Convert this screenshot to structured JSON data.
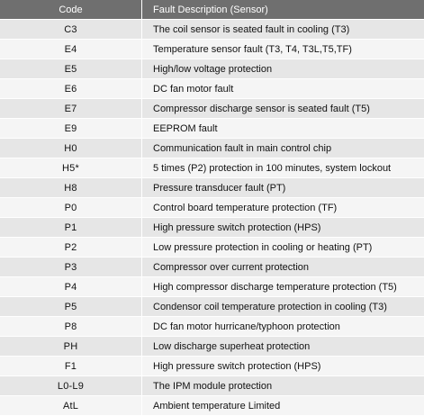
{
  "table": {
    "headers": {
      "code": "Code",
      "description": "Fault Description (Sensor)"
    },
    "rows": [
      {
        "code": "C3",
        "description": "The coil sensor is seated fault in cooling (T3)"
      },
      {
        "code": "E4",
        "description": "Temperature sensor fault (T3, T4, T3L,T5,TF)"
      },
      {
        "code": "E5",
        "description": "High/low voltage protection"
      },
      {
        "code": "E6",
        "description": "DC fan motor fault"
      },
      {
        "code": "E7",
        "description": "Compressor discharge sensor is seated fault (T5)"
      },
      {
        "code": "E9",
        "description": "EEPROM fault"
      },
      {
        "code": "H0",
        "description": "Communication fault in main control chip"
      },
      {
        "code": "H5*",
        "description": "5 times (P2) protection in 100 minutes, system lockout"
      },
      {
        "code": "H8",
        "description": "Pressure transducer fault (PT)"
      },
      {
        "code": "P0",
        "description": "Control board temperature protection (TF)"
      },
      {
        "code": "P1",
        "description": "High pressure switch protection (HPS)"
      },
      {
        "code": "P2",
        "description": "Low pressure protection in cooling or heating (PT)"
      },
      {
        "code": "P3",
        "description": "Compressor over current protection"
      },
      {
        "code": "P4",
        "description": "High compressor discharge temperature protection (T5)"
      },
      {
        "code": "P5",
        "description": "Condensor coil temperature protection in cooling (T3)"
      },
      {
        "code": "P8",
        "description": "DC fan motor hurricane/typhoon protection"
      },
      {
        "code": "PH",
        "description": "Low discharge superheat protection"
      },
      {
        "code": "F1",
        "description": "High pressure switch protection (HPS)"
      },
      {
        "code": "L0-L9",
        "description": "The IPM module protection"
      },
      {
        "code": "AtL",
        "description": "Ambient temperature Limited"
      }
    ]
  },
  "colors": {
    "header_bg": "#6f6f6f",
    "row_odd": "#e6e6e6",
    "row_even": "#f5f5f5"
  }
}
